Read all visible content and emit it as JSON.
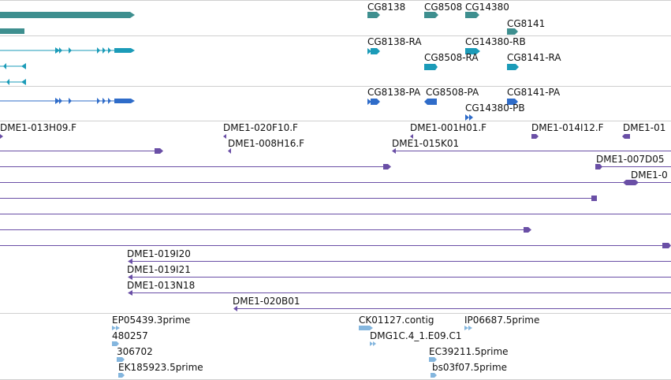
{
  "colors": {
    "gene": "#3e8f8f",
    "transcript": "#1b9bb8",
    "protein": "#2f6cc9",
    "clone": "#6a4fa6",
    "est": "#84b6de",
    "divider": "#cfcfcf"
  },
  "tracks": {
    "genes": {
      "labels": [
        "CG8138",
        "CG8508",
        "CG14380",
        "CG8141"
      ]
    },
    "transcripts": {
      "labels": [
        "CG8138-RA",
        "CG14380-RB",
        "CG8508-RA",
        "CG8141-RA"
      ]
    },
    "proteins": {
      "labels": [
        "CG8138-PA",
        "CG8508-PA",
        "CG8141-PA",
        "CG14380-PB"
      ]
    },
    "clones": {
      "labels": [
        "DME1-013H09.F",
        "DME1-020F10.F",
        "DME1-001H01.F",
        "DME1-014I12.F",
        "DME1-01",
        "DME1-008H16.F",
        "DME1-015K01",
        "DME1-007D05",
        "DME1-0",
        "DME1-019I20",
        "DME1-019I21",
        "DME1-013N18",
        "DME1-020B01"
      ]
    },
    "ests": {
      "labels": [
        "EP05439.3prime",
        "480257",
        "306702",
        "EK185923.5prime",
        "CK01127.contig",
        "DMG1C.4_1.E09.C1",
        "IP06687.5prime",
        "EC39211.5prime",
        "bs03f07.5prime"
      ]
    }
  }
}
